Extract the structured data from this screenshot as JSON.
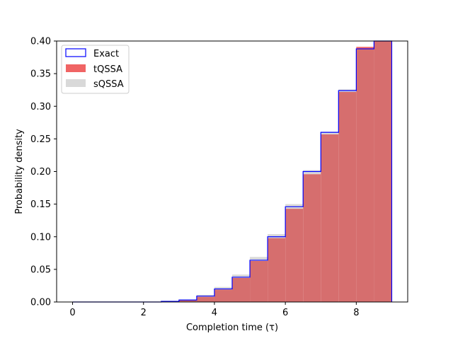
{
  "chart_data": {
    "type": "bar",
    "xlabel": "Completion time (τ)",
    "ylabel": "Probability density",
    "xlim": [
      -0.45,
      9.45
    ],
    "ylim": [
      0,
      0.4
    ],
    "xticks": [
      0,
      2,
      4,
      6,
      8
    ],
    "xtick_labels": [
      "0",
      "2",
      "4",
      "6",
      "8"
    ],
    "yticks": [
      0.0,
      0.05,
      0.1,
      0.15,
      0.2,
      0.25,
      0.3,
      0.35,
      0.4
    ],
    "ytick_labels": [
      "0.00",
      "0.05",
      "0.10",
      "0.15",
      "0.20",
      "0.25",
      "0.30",
      "0.35",
      "0.40"
    ],
    "bin_edges": [
      0,
      0.5,
      1,
      1.5,
      2,
      2.5,
      3,
      3.5,
      4,
      4.5,
      5,
      5.5,
      6,
      6.5,
      7,
      7.5,
      8,
      8.5,
      9
    ],
    "series": [
      {
        "name": "Exact",
        "style": "step",
        "color": "#0000ff",
        "values": [
          0,
          0,
          0,
          0,
          0,
          0.001,
          0.003,
          0.009,
          0.02,
          0.038,
          0.064,
          0.1,
          0.146,
          0.2,
          0.26,
          0.324,
          0.388,
          0.4
        ]
      },
      {
        "name": "tQSSA",
        "style": "filled",
        "color": "#f06464",
        "values": [
          0,
          0,
          0,
          0,
          0,
          0.001,
          0.003,
          0.008,
          0.019,
          0.037,
          0.063,
          0.098,
          0.143,
          0.196,
          0.257,
          0.322,
          0.391,
          0.4
        ]
      },
      {
        "name": "sQSSA",
        "style": "filled",
        "color": "#d9d9d9",
        "values": [
          0,
          0,
          0,
          0,
          0,
          0.001,
          0.004,
          0.011,
          0.023,
          0.042,
          0.069,
          0.104,
          0.15,
          0.202,
          0.261,
          0.326,
          0.388,
          0.4
        ]
      }
    ],
    "overlap_color": "#d66e6e",
    "legend_position": "upper-left"
  }
}
